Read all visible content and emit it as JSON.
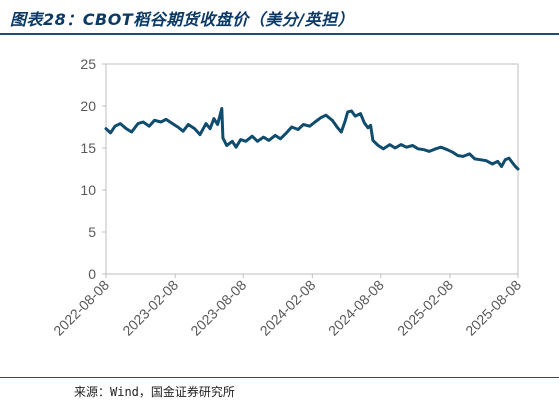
{
  "title": "图表28：CBOT稻谷期货收盘价（美分/英担）",
  "source": "来源：Wind，国金证券研究所",
  "colors": {
    "line": "#0f4c6e",
    "title": "#0c3a66",
    "axis_text": "#595959",
    "frame": "#bfbfbf"
  },
  "chart_data": {
    "type": "line",
    "title": "",
    "xlabel": "",
    "ylabel": "",
    "ylim": [
      0,
      25
    ],
    "yticks": [
      0,
      5,
      10,
      15,
      20,
      25
    ],
    "grid": false,
    "legend": "none",
    "xlim": [
      "2022-08-08",
      "2025-08-08"
    ],
    "xticks": [
      "2022-08-08",
      "2023-02-08",
      "2023-08-08",
      "2024-02-08",
      "2024-08-08",
      "2025-02-08",
      "2025-08-08"
    ],
    "series": [
      {
        "name": "",
        "points": [
          [
            "2022-08-08",
            17.3
          ],
          [
            "2022-08-20",
            16.8
          ],
          [
            "2022-09-01",
            17.6
          ],
          [
            "2022-09-15",
            17.9
          ],
          [
            "2022-10-01",
            17.3
          ],
          [
            "2022-10-15",
            16.9
          ],
          [
            "2022-11-01",
            17.9
          ],
          [
            "2022-11-15",
            18.1
          ],
          [
            "2022-12-01",
            17.6
          ],
          [
            "2022-12-15",
            18.3
          ],
          [
            "2023-01-01",
            18.1
          ],
          [
            "2023-01-15",
            18.4
          ],
          [
            "2023-02-01",
            17.9
          ],
          [
            "2023-02-15",
            17.5
          ],
          [
            "2023-03-01",
            17.0
          ],
          [
            "2023-03-15",
            17.8
          ],
          [
            "2023-04-01",
            17.3
          ],
          [
            "2023-04-15",
            16.6
          ],
          [
            "2023-05-01",
            17.9
          ],
          [
            "2023-05-12",
            17.3
          ],
          [
            "2023-05-22",
            18.5
          ],
          [
            "2023-06-01",
            17.8
          ],
          [
            "2023-06-12",
            19.7
          ],
          [
            "2023-06-15",
            16.2
          ],
          [
            "2023-06-25",
            15.3
          ],
          [
            "2023-07-10",
            15.8
          ],
          [
            "2023-07-20",
            15.1
          ],
          [
            "2023-08-01",
            16.0
          ],
          [
            "2023-08-15",
            15.8
          ],
          [
            "2023-09-01",
            16.4
          ],
          [
            "2023-09-15",
            15.8
          ],
          [
            "2023-10-01",
            16.3
          ],
          [
            "2023-10-15",
            15.9
          ],
          [
            "2023-11-01",
            16.5
          ],
          [
            "2023-11-15",
            16.1
          ],
          [
            "2023-12-01",
            16.8
          ],
          [
            "2023-12-15",
            17.5
          ],
          [
            "2024-01-01",
            17.2
          ],
          [
            "2024-01-15",
            17.8
          ],
          [
            "2024-02-01",
            17.6
          ],
          [
            "2024-02-15",
            18.1
          ],
          [
            "2024-03-01",
            18.6
          ],
          [
            "2024-03-15",
            18.9
          ],
          [
            "2024-04-01",
            18.3
          ],
          [
            "2024-04-15",
            17.4
          ],
          [
            "2024-04-25",
            16.9
          ],
          [
            "2024-05-05",
            18.2
          ],
          [
            "2024-05-12",
            19.3
          ],
          [
            "2024-05-22",
            19.4
          ],
          [
            "2024-06-01",
            18.8
          ],
          [
            "2024-06-15",
            19.1
          ],
          [
            "2024-06-25",
            18.0
          ],
          [
            "2024-07-05",
            17.4
          ],
          [
            "2024-07-12",
            17.7
          ],
          [
            "2024-07-18",
            15.9
          ],
          [
            "2024-08-01",
            15.3
          ],
          [
            "2024-08-15",
            14.9
          ],
          [
            "2024-09-01",
            15.4
          ],
          [
            "2024-09-15",
            15.0
          ],
          [
            "2024-10-01",
            15.4
          ],
          [
            "2024-10-15",
            15.1
          ],
          [
            "2024-11-01",
            15.3
          ],
          [
            "2024-11-15",
            14.9
          ],
          [
            "2024-12-01",
            14.8
          ],
          [
            "2024-12-15",
            14.6
          ],
          [
            "2025-01-01",
            14.9
          ],
          [
            "2025-01-15",
            15.1
          ],
          [
            "2025-02-01",
            14.8
          ],
          [
            "2025-02-15",
            14.5
          ],
          [
            "2025-03-01",
            14.1
          ],
          [
            "2025-03-15",
            14.0
          ],
          [
            "2025-04-01",
            14.3
          ],
          [
            "2025-04-15",
            13.7
          ],
          [
            "2025-05-01",
            13.6
          ],
          [
            "2025-05-15",
            13.5
          ],
          [
            "2025-06-01",
            13.1
          ],
          [
            "2025-06-15",
            13.4
          ],
          [
            "2025-06-25",
            12.8
          ],
          [
            "2025-07-05",
            13.6
          ],
          [
            "2025-07-15",
            13.8
          ],
          [
            "2025-07-25",
            13.2
          ],
          [
            "2025-08-01",
            12.8
          ],
          [
            "2025-08-08",
            12.5
          ]
        ]
      }
    ]
  }
}
